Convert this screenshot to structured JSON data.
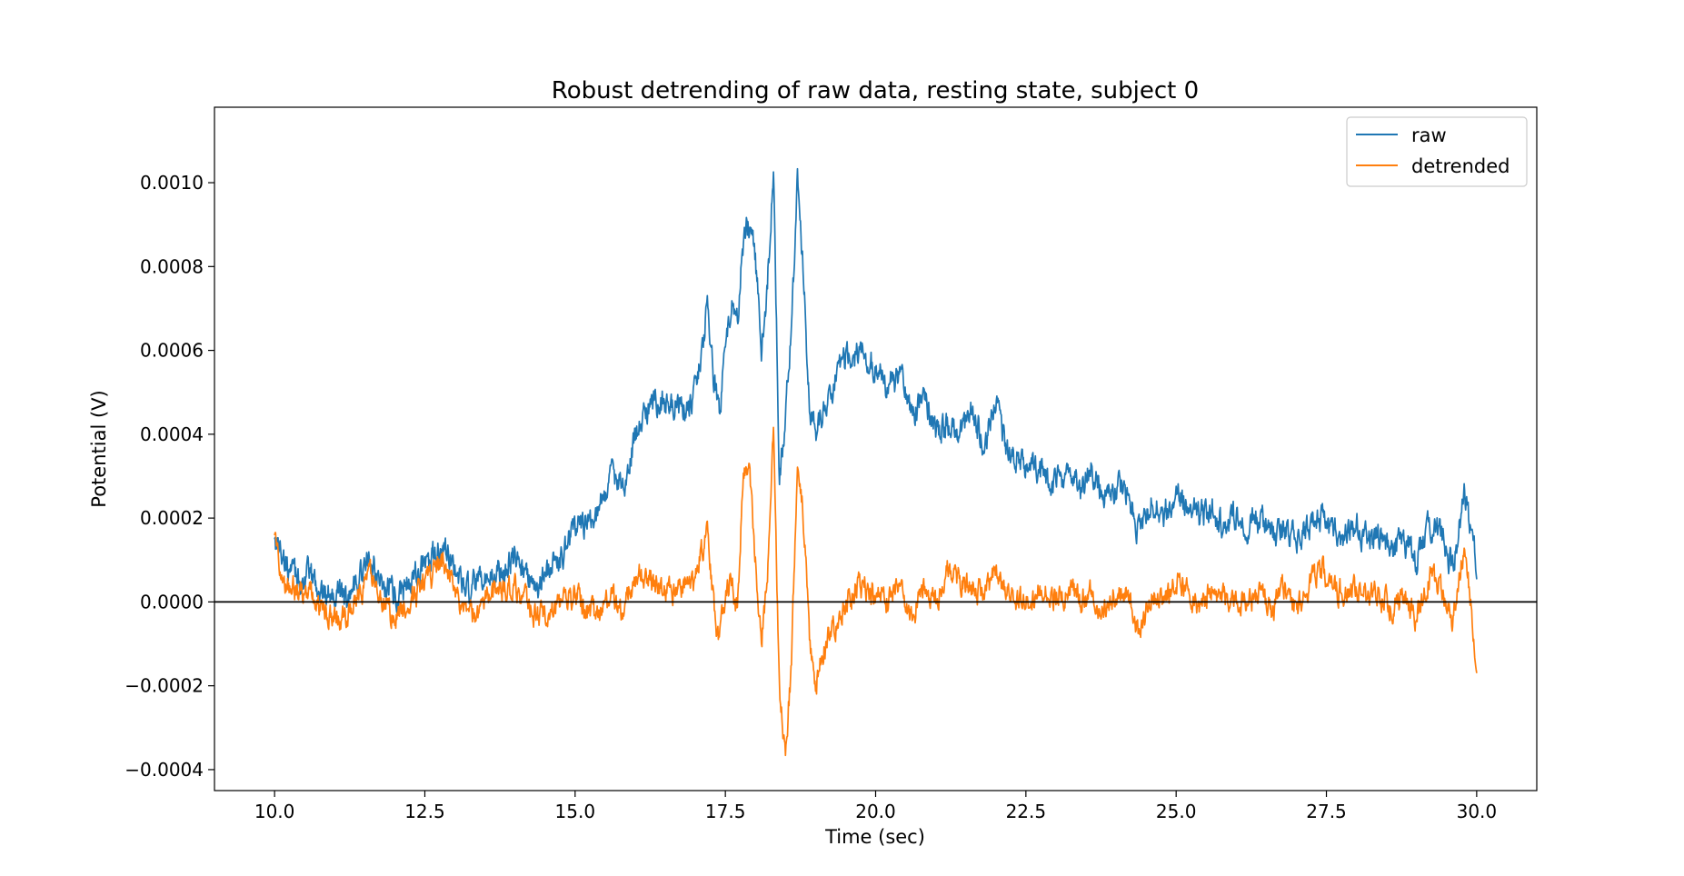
{
  "chart_data": {
    "type": "line",
    "title": "Robust detrending of raw data, resting state, subject 0",
    "xlabel": "Time (sec)",
    "ylabel": "Potential (V)",
    "xlim": [
      9.0,
      31.0
    ],
    "ylim": [
      -0.00045,
      0.00118
    ],
    "xticks": [
      10.0,
      12.5,
      15.0,
      17.5,
      20.0,
      22.5,
      25.0,
      27.5,
      30.0
    ],
    "xtick_labels": [
      "10.0",
      "12.5",
      "15.0",
      "17.5",
      "20.0",
      "22.5",
      "25.0",
      "27.5",
      "30.0"
    ],
    "yticks": [
      -0.0004,
      -0.0002,
      0.0,
      0.0002,
      0.0004,
      0.0006,
      0.0008,
      0.001
    ],
    "ytick_labels": [
      "−0.0004",
      "−0.0002",
      "0.0000",
      "0.0002",
      "0.0004",
      "0.0006",
      "0.0008",
      "0.0010"
    ],
    "grid": false,
    "legend_position": "top-right",
    "zero_line": true,
    "series": [
      {
        "name": "raw",
        "color": "#1f77b4",
        "x": [
          10.0,
          10.2,
          10.4,
          10.6,
          10.8,
          11.0,
          11.2,
          11.4,
          11.6,
          11.8,
          12.0,
          12.2,
          12.4,
          12.6,
          12.8,
          13.0,
          13.2,
          13.4,
          13.6,
          13.8,
          14.0,
          14.2,
          14.4,
          14.6,
          14.8,
          15.0,
          15.2,
          15.4,
          15.6,
          15.8,
          16.0,
          16.2,
          16.4,
          16.6,
          16.8,
          17.0,
          17.1,
          17.2,
          17.3,
          17.4,
          17.5,
          17.6,
          17.7,
          17.8,
          17.9,
          18.0,
          18.1,
          18.2,
          18.3,
          18.4,
          18.5,
          18.6,
          18.7,
          18.8,
          18.9,
          19.0,
          19.2,
          19.4,
          19.6,
          19.8,
          20.0,
          20.2,
          20.4,
          20.6,
          20.8,
          21.0,
          21.2,
          21.4,
          21.6,
          21.8,
          22.0,
          22.2,
          22.4,
          22.6,
          22.8,
          23.0,
          23.2,
          23.4,
          23.6,
          23.8,
          24.0,
          24.2,
          24.4,
          24.6,
          24.8,
          25.0,
          25.2,
          25.4,
          25.6,
          25.8,
          26.0,
          26.2,
          26.4,
          26.6,
          26.8,
          27.0,
          27.2,
          27.4,
          27.6,
          27.8,
          28.0,
          28.2,
          28.4,
          28.6,
          28.8,
          29.0,
          29.2,
          29.4,
          29.6,
          29.8,
          30.0
        ],
        "y": [
          0.00016,
          8e-05,
          5e-05,
          6e-05,
          2e-05,
          3e-05,
          1e-05,
          6e-05,
          0.0001,
          4e-05,
          2e-05,
          4e-05,
          7e-05,
          0.0001,
          0.00012,
          8e-05,
          2e-05,
          4e-05,
          6e-05,
          8e-05,
          0.0001,
          6e-05,
          4e-05,
          8e-05,
          0.00012,
          0.00017,
          0.00019,
          0.00022,
          0.0003,
          0.00028,
          0.0004,
          0.00045,
          0.00048,
          0.00047,
          0.00046,
          0.0005,
          0.0006,
          0.0007,
          0.00055,
          0.00045,
          0.00062,
          0.0007,
          0.00068,
          0.00085,
          0.0009,
          0.00082,
          0.0006,
          0.00075,
          0.00105,
          0.0003,
          0.00045,
          0.00065,
          0.001,
          0.00078,
          0.00045,
          0.0004,
          0.00048,
          0.00056,
          0.00058,
          0.0006,
          0.00055,
          0.00052,
          0.00054,
          0.00044,
          0.0005,
          0.0004,
          0.00042,
          0.0004,
          0.00045,
          0.00038,
          0.00046,
          0.00036,
          0.00034,
          0.00032,
          0.0003,
          0.00028,
          0.0003,
          0.00027,
          0.00032,
          0.00025,
          0.00028,
          0.00026,
          0.00015,
          0.00025,
          0.00022,
          0.00026,
          0.00024,
          0.0002,
          0.00022,
          0.00018,
          0.0002,
          0.00018,
          0.0002,
          0.00016,
          0.00019,
          0.00014,
          0.00018,
          0.0002,
          0.00017,
          0.00016,
          0.00018,
          0.00014,
          0.00016,
          0.00012,
          0.00015,
          0.0001,
          0.00018,
          0.00016,
          8e-05,
          0.00025,
          8e-05
        ],
        "jitter": 4.5e-05
      },
      {
        "name": "detrended",
        "color": "#ff7f0e",
        "x": [
          10.0,
          10.2,
          10.4,
          10.6,
          10.8,
          11.0,
          11.2,
          11.4,
          11.6,
          11.8,
          12.0,
          12.2,
          12.4,
          12.6,
          12.8,
          13.0,
          13.2,
          13.4,
          13.6,
          13.8,
          14.0,
          14.2,
          14.4,
          14.6,
          14.8,
          15.0,
          15.2,
          15.4,
          15.6,
          15.8,
          16.0,
          16.2,
          16.4,
          16.6,
          16.8,
          17.0,
          17.1,
          17.2,
          17.3,
          17.4,
          17.5,
          17.6,
          17.7,
          17.8,
          17.9,
          18.0,
          18.1,
          18.2,
          18.3,
          18.4,
          18.5,
          18.6,
          18.7,
          18.8,
          18.9,
          19.0,
          19.2,
          19.4,
          19.6,
          19.8,
          20.0,
          20.2,
          20.4,
          20.6,
          20.8,
          21.0,
          21.2,
          21.4,
          21.6,
          21.8,
          22.0,
          22.2,
          22.4,
          22.6,
          22.8,
          23.0,
          23.2,
          23.4,
          23.6,
          23.8,
          24.0,
          24.2,
          24.4,
          24.6,
          24.8,
          25.0,
          25.2,
          25.4,
          25.6,
          25.8,
          26.0,
          26.2,
          26.4,
          26.6,
          26.8,
          27.0,
          27.2,
          27.4,
          27.6,
          27.8,
          28.0,
          28.2,
          28.4,
          28.6,
          28.8,
          29.0,
          29.2,
          29.4,
          29.6,
          29.8,
          30.0
        ],
        "y": [
          0.00014,
          4e-05,
          2e-05,
          2e-05,
          -2e-05,
          -3e-05,
          -4e-05,
          2e-05,
          6e-05,
          1e-05,
          -4e-05,
          -1e-05,
          3e-05,
          6e-05,
          0.0001,
          4e-05,
          -4e-05,
          -2e-05,
          1e-05,
          3e-05,
          4e-05,
          0.0,
          -4e-05,
          -2e-05,
          0.0,
          2e-05,
          -2e-05,
          -4e-05,
          2e-05,
          -2e-05,
          6e-05,
          6e-05,
          4e-05,
          2e-05,
          4e-05,
          5e-05,
          0.00012,
          0.00016,
          0.0,
          -0.0001,
          2e-05,
          4e-05,
          -2e-05,
          0.0003,
          0.00032,
          0.0001,
          -0.0001,
          6e-05,
          0.0004,
          -0.0002,
          -0.00035,
          -0.00015,
          0.00036,
          0.0002,
          -0.0001,
          -0.0002,
          -8e-05,
          -4e-05,
          2e-05,
          4e-05,
          2e-05,
          0.0,
          4e-05,
          -4e-05,
          4e-05,
          1e-05,
          8e-05,
          5e-05,
          4e-05,
          1e-05,
          8e-05,
          2e-05,
          0.0,
          2e-05,
          3e-05,
          1e-05,
          3e-05,
          0.0,
          2e-05,
          -2e-05,
          2e-05,
          1e-05,
          -8e-05,
          2e-05,
          0.0,
          4e-05,
          3e-05,
          -2e-05,
          4e-05,
          0.0,
          2e-05,
          0.0,
          2e-05,
          -2e-05,
          3e-05,
          -2e-05,
          4e-05,
          8e-05,
          4e-05,
          2e-05,
          4e-05,
          0.0,
          2e-05,
          -2e-05,
          2e-05,
          -4e-05,
          6e-05,
          4e-05,
          -4e-05,
          0.00014,
          -0.00016
        ],
        "jitter": 4e-05
      }
    ]
  }
}
